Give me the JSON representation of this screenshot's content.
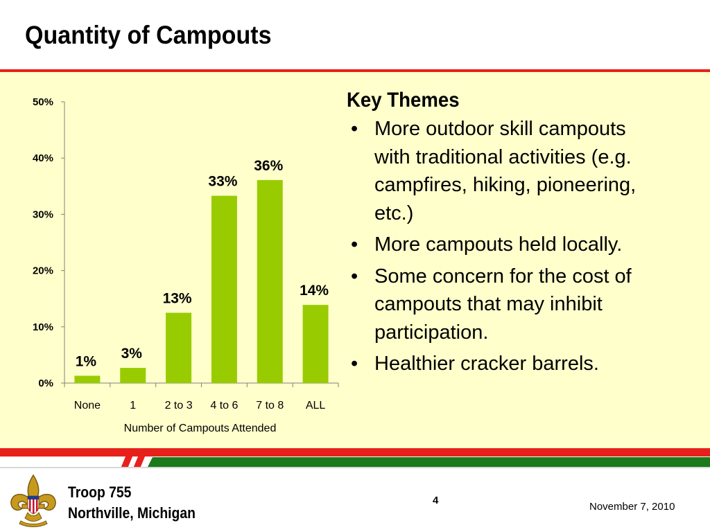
{
  "slide": {
    "title": "Quantity of Campouts",
    "page_number": "4",
    "date": "November 7, 2010"
  },
  "footer": {
    "troop_line1": "Troop 755",
    "troop_line2": "Northville, Michigan",
    "emblem_icon": "fleur-de-lis-emblem-icon"
  },
  "themes": {
    "heading": "Key Themes",
    "bullet_char": "•",
    "items": [
      {
        "lines": [
          "More outdoor skill campouts",
          "with traditional activities (e.g.",
          "campfires, hiking, pioneering,",
          "etc.)"
        ]
      },
      {
        "lines": [
          "More campouts held locally."
        ]
      },
      {
        "lines": [
          "Some concern for the cost of",
          "campouts that may inhibit",
          "participation."
        ]
      },
      {
        "lines": [
          "Healthier cracker barrels."
        ]
      }
    ]
  },
  "colors": {
    "accent_red": "#e8201c",
    "accent_green": "#1b7a1b",
    "bar_green": "#99cc00",
    "panel_bg": "#ffffcc"
  },
  "chart_data": {
    "type": "bar",
    "categories": [
      "None",
      "1",
      "2 to 3",
      "4 to 6",
      "7 to 8",
      "ALL"
    ],
    "values": [
      1.3,
      2.7,
      12.5,
      33.3,
      36.1,
      13.9
    ],
    "data_labels": [
      "1%",
      "3%",
      "13%",
      "33%",
      "36%",
      "14%"
    ],
    "xlabel": "Number of Campouts Attended",
    "ylabel": "",
    "ylim": [
      0,
      50
    ],
    "yticks": [
      0,
      10,
      20,
      30,
      40,
      50
    ],
    "ytick_labels": [
      "0%",
      "10%",
      "20%",
      "30%",
      "40%",
      "50%"
    ],
    "grid": false,
    "legend": "none"
  }
}
